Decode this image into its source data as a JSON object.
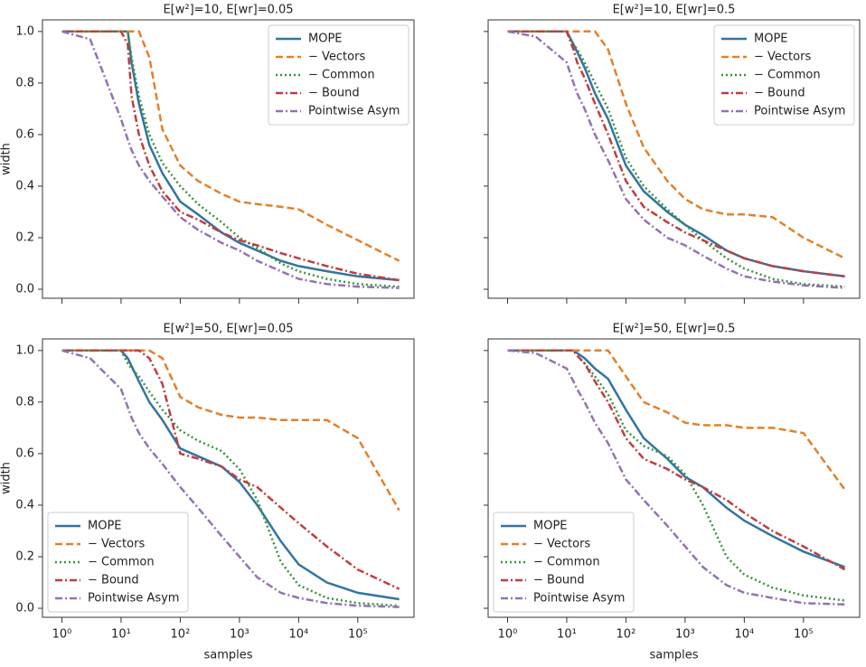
{
  "chart_data": [
    {
      "type": "line",
      "title": "E[w²]=10, E[wr]=0.05",
      "ylabel": "width",
      "log_x": true,
      "legend": "upper right",
      "show_xticklabels": false,
      "show_yticklabels": true,
      "xlim": [
        0.47,
        890000
      ],
      "ylim": [
        -0.035,
        1.045
      ],
      "xticks": [
        1,
        10,
        100,
        1000,
        10000,
        100000
      ],
      "yticks": [
        {
          "value": 0,
          "label": "0.0"
        },
        0.2,
        0.4,
        0.6,
        0.8,
        {
          "value": 1,
          "label": "1.0"
        }
      ],
      "x": [
        1,
        3,
        10,
        13,
        15,
        20,
        30,
        50,
        100,
        200,
        500,
        1000,
        2000,
        5000,
        10000,
        30000,
        100000,
        500000
      ],
      "series": [
        {
          "name": "MOPE",
          "color": "#3274a1",
          "style": "solid",
          "values": [
            1,
            1,
            1,
            1,
            0.88,
            0.72,
            0.56,
            0.45,
            0.34,
            0.29,
            0.22,
            0.18,
            0.15,
            0.11,
            0.09,
            0.07,
            0.05,
            0.035
          ]
        },
        {
          "name": "− Vectors",
          "color": "#e1812c",
          "style": "dashed",
          "values": [
            1,
            1,
            1,
            1,
            1,
            1,
            0.9,
            0.62,
            0.48,
            0.42,
            0.37,
            0.34,
            0.33,
            0.32,
            0.31,
            0.25,
            0.19,
            0.11
          ]
        },
        {
          "name": "− Common",
          "color": "#3a923a",
          "style": "dotted",
          "values": [
            1,
            1,
            1,
            1,
            0.9,
            0.75,
            0.6,
            0.49,
            0.4,
            0.33,
            0.26,
            0.2,
            0.16,
            0.1,
            0.07,
            0.04,
            0.02,
            0.01
          ]
        },
        {
          "name": "− Bound",
          "color": "#c03d3e",
          "style": "dashdot",
          "values": [
            1,
            1,
            1,
            0.95,
            0.75,
            0.6,
            0.48,
            0.38,
            0.3,
            0.27,
            0.22,
            0.19,
            0.17,
            0.14,
            0.12,
            0.09,
            0.06,
            0.035
          ]
        },
        {
          "name": "Pointwise Asym",
          "color": "#9372b2",
          "style": "dashdot",
          "values": [
            1,
            0.97,
            0.66,
            0.58,
            0.54,
            0.48,
            0.42,
            0.36,
            0.28,
            0.23,
            0.18,
            0.15,
            0.11,
            0.07,
            0.04,
            0.02,
            0.01,
            0.005
          ]
        }
      ]
    },
    {
      "type": "line",
      "title": "E[w²]=10, E[wr]=0.5",
      "log_x": true,
      "legend": "upper right",
      "show_xticklabels": false,
      "show_yticklabels": false,
      "xlim": [
        0.47,
        890000
      ],
      "ylim": [
        -0.035,
        1.045
      ],
      "xticks": [
        1,
        10,
        100,
        1000,
        10000,
        100000
      ],
      "yticks": [
        0,
        0.2,
        0.4,
        0.6,
        0.8,
        1
      ],
      "x": [
        1,
        3,
        10,
        13,
        15,
        20,
        30,
        50,
        100,
        200,
        500,
        1000,
        2000,
        5000,
        10000,
        30000,
        100000,
        500000
      ],
      "series": [
        {
          "name": "MOPE",
          "color": "#3274a1",
          "style": "solid",
          "values": [
            1,
            1,
            1,
            0.95,
            0.92,
            0.86,
            0.76,
            0.66,
            0.48,
            0.38,
            0.3,
            0.25,
            0.21,
            0.15,
            0.12,
            0.09,
            0.07,
            0.05
          ]
        },
        {
          "name": "− Vectors",
          "color": "#e1812c",
          "style": "dashed",
          "values": [
            1,
            1,
            1,
            1,
            1,
            1,
            1,
            0.93,
            0.72,
            0.55,
            0.42,
            0.35,
            0.31,
            0.29,
            0.29,
            0.28,
            0.2,
            0.12
          ]
        },
        {
          "name": "− Common",
          "color": "#3a923a",
          "style": "dotted",
          "values": [
            1,
            1,
            1,
            0.95,
            0.93,
            0.88,
            0.8,
            0.7,
            0.51,
            0.4,
            0.31,
            0.25,
            0.19,
            0.12,
            0.08,
            0.04,
            0.02,
            0.01
          ]
        },
        {
          "name": "− Bound",
          "color": "#c03d3e",
          "style": "dashdot",
          "values": [
            1,
            1,
            1,
            0.93,
            0.88,
            0.82,
            0.72,
            0.6,
            0.42,
            0.32,
            0.26,
            0.22,
            0.19,
            0.15,
            0.12,
            0.09,
            0.07,
            0.05
          ]
        },
        {
          "name": "Pointwise Asym",
          "color": "#9372b2",
          "style": "dashdot",
          "values": [
            1,
            0.98,
            0.88,
            0.8,
            0.76,
            0.7,
            0.6,
            0.5,
            0.35,
            0.27,
            0.2,
            0.17,
            0.13,
            0.08,
            0.05,
            0.03,
            0.015,
            0.005
          ]
        }
      ]
    },
    {
      "type": "line",
      "title": "E[w²]=50, E[wr]=0.05",
      "ylabel": "width",
      "xlabel": "samples",
      "log_x": true,
      "legend": "lower left",
      "show_xticklabels": true,
      "show_yticklabels": true,
      "xlim": [
        0.47,
        890000
      ],
      "ylim": [
        -0.035,
        1.045
      ],
      "xticks": [
        {
          "value": 1,
          "label": "10⁰"
        },
        {
          "value": 10,
          "label": "10¹"
        },
        {
          "value": 100,
          "label": "10²"
        },
        {
          "value": 1000,
          "label": "10³"
        },
        {
          "value": 10000,
          "label": "10⁴"
        },
        {
          "value": 100000,
          "label": "10⁵"
        }
      ],
      "yticks": [
        {
          "value": 0,
          "label": "0.0"
        },
        0.2,
        0.4,
        0.6,
        0.8,
        {
          "value": 1,
          "label": "1.0"
        }
      ],
      "x": [
        1,
        3,
        10,
        13,
        15,
        20,
        30,
        50,
        100,
        200,
        500,
        1000,
        2000,
        5000,
        10000,
        30000,
        100000,
        500000
      ],
      "series": [
        {
          "name": "MOPE",
          "color": "#3274a1",
          "style": "solid",
          "values": [
            1,
            1,
            1,
            0.97,
            0.94,
            0.88,
            0.8,
            0.73,
            0.62,
            0.59,
            0.55,
            0.49,
            0.4,
            0.26,
            0.17,
            0.1,
            0.06,
            0.035
          ]
        },
        {
          "name": "− Vectors",
          "color": "#e1812c",
          "style": "dashed",
          "values": [
            1,
            1,
            1,
            1,
            1,
            1,
            1,
            0.97,
            0.82,
            0.78,
            0.75,
            0.74,
            0.74,
            0.73,
            0.73,
            0.73,
            0.66,
            0.38
          ]
        },
        {
          "name": "− Common",
          "color": "#3a923a",
          "style": "dotted",
          "values": [
            1,
            1,
            1,
            0.95,
            0.93,
            0.9,
            0.84,
            0.77,
            0.69,
            0.65,
            0.61,
            0.54,
            0.42,
            0.18,
            0.09,
            0.04,
            0.02,
            0.01
          ]
        },
        {
          "name": "− Bound",
          "color": "#c03d3e",
          "style": "dashdot",
          "values": [
            1,
            1,
            1,
            1,
            1,
            1,
            0.97,
            0.87,
            0.6,
            0.58,
            0.55,
            0.5,
            0.47,
            0.39,
            0.33,
            0.24,
            0.15,
            0.075
          ]
        },
        {
          "name": "Pointwise Asym",
          "color": "#9372b2",
          "style": "dashdot",
          "values": [
            1,
            0.97,
            0.85,
            0.78,
            0.74,
            0.68,
            0.62,
            0.56,
            0.47,
            0.39,
            0.28,
            0.2,
            0.12,
            0.06,
            0.04,
            0.02,
            0.01,
            0.005
          ]
        }
      ]
    },
    {
      "type": "line",
      "title": "E[w²]=50, E[wr]=0.5",
      "xlabel": "samples",
      "log_x": true,
      "legend": "lower left",
      "show_xticklabels": true,
      "show_yticklabels": false,
      "xlim": [
        0.47,
        890000
      ],
      "ylim": [
        -0.035,
        1.045
      ],
      "xticks": [
        {
          "value": 1,
          "label": "10⁰"
        },
        {
          "value": 10,
          "label": "10¹"
        },
        {
          "value": 100,
          "label": "10²"
        },
        {
          "value": 1000,
          "label": "10³"
        },
        {
          "value": 10000,
          "label": "10⁴"
        },
        {
          "value": 100000,
          "label": "10⁵"
        }
      ],
      "yticks": [
        0,
        0.2,
        0.4,
        0.6,
        0.8,
        1
      ],
      "x": [
        1,
        3,
        10,
        13,
        15,
        20,
        30,
        50,
        100,
        200,
        500,
        1000,
        2000,
        5000,
        10000,
        30000,
        100000,
        500000
      ],
      "series": [
        {
          "name": "MOPE",
          "color": "#3274a1",
          "style": "solid",
          "values": [
            1,
            1,
            1,
            1,
            0.99,
            0.97,
            0.93,
            0.89,
            0.77,
            0.66,
            0.58,
            0.51,
            0.47,
            0.39,
            0.34,
            0.28,
            0.22,
            0.16
          ]
        },
        {
          "name": "− Vectors",
          "color": "#e1812c",
          "style": "dashed",
          "values": [
            1,
            1,
            1,
            1,
            1,
            1,
            1,
            1,
            0.9,
            0.8,
            0.76,
            0.72,
            0.71,
            0.71,
            0.7,
            0.7,
            0.68,
            0.46
          ]
        },
        {
          "name": "− Common",
          "color": "#3a923a",
          "style": "dotted",
          "values": [
            1,
            1,
            1,
            1,
            0.98,
            0.95,
            0.9,
            0.83,
            0.69,
            0.63,
            0.59,
            0.52,
            0.4,
            0.2,
            0.13,
            0.08,
            0.05,
            0.03
          ]
        },
        {
          "name": "− Bound",
          "color": "#c03d3e",
          "style": "dashdot",
          "values": [
            1,
            1,
            1,
            1,
            0.98,
            0.95,
            0.88,
            0.8,
            0.66,
            0.58,
            0.54,
            0.5,
            0.47,
            0.42,
            0.37,
            0.3,
            0.24,
            0.15
          ]
        },
        {
          "name": "Pointwise Asym",
          "color": "#9372b2",
          "style": "dashdot",
          "values": [
            1,
            0.99,
            0.93,
            0.88,
            0.85,
            0.8,
            0.72,
            0.64,
            0.5,
            0.42,
            0.32,
            0.24,
            0.16,
            0.09,
            0.06,
            0.04,
            0.02,
            0.015
          ]
        }
      ]
    }
  ]
}
